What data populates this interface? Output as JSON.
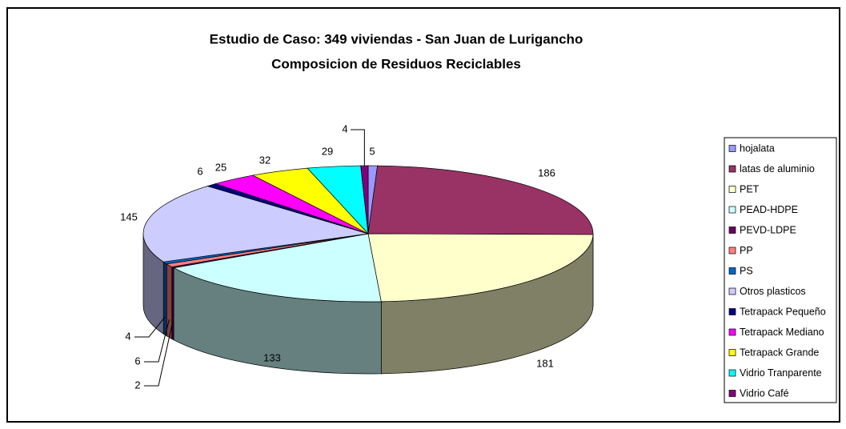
{
  "chart_data": {
    "type": "pie3d",
    "title": "Estudio de Caso: 349 viviendas - San Juan de Lurigancho",
    "subtitle": "Composicion de Residuos Reciclables",
    "legend": "right",
    "categories": [
      "hojalata",
      "latas de aluminio",
      "PET",
      "PEAD-HDPE",
      "PEVD-LDPE",
      "PP",
      "PS",
      "Otros plasticos",
      "Tetrapack Pequeño",
      "Tetrapack Mediano",
      "Tetrapack Grande",
      "Vidrio Tranparente",
      "Vidrio Café"
    ],
    "values": [
      5,
      186,
      181,
      133,
      2,
      6,
      4,
      145,
      6,
      25,
      32,
      29,
      4
    ],
    "colors": [
      "#9999ff",
      "#993366",
      "#ffffcc",
      "#ccffff",
      "#660066",
      "#ff8080",
      "#0066cc",
      "#ccccff",
      "#000080",
      "#ff00ff",
      "#ffff00",
      "#00ffff",
      "#800080"
    ]
  }
}
